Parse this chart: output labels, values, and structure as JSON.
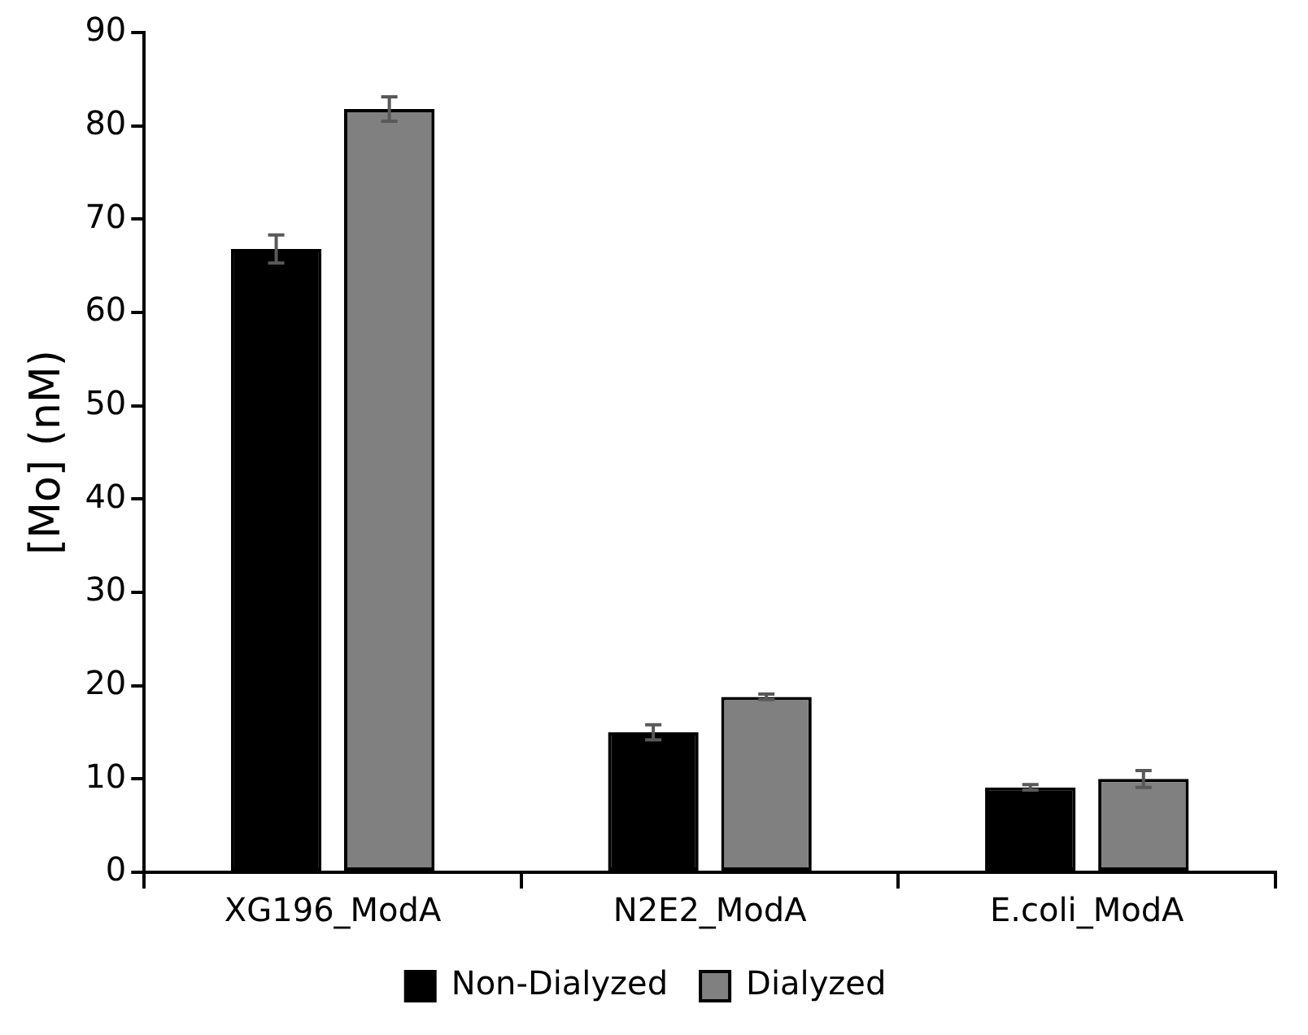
{
  "chart_data": {
    "type": "bar",
    "ylabel": "[Mo] (nM)",
    "categories": [
      "XG196_ModA",
      "N2E2_ModA",
      "E.coli_ModA"
    ],
    "series": [
      {
        "name": "Non-Dialyzed",
        "color": "#000000",
        "values": [
          66.8,
          15.0,
          9.1
        ],
        "errors": [
          1.5,
          0.8,
          0.3
        ]
      },
      {
        "name": "Dialyzed",
        "color": "#808080",
        "values": [
          81.8,
          18.8,
          10.0
        ],
        "errors": [
          1.3,
          0.3,
          0.9
        ]
      }
    ],
    "ylim": [
      0,
      90
    ],
    "yticks": [
      0,
      10,
      20,
      30,
      40,
      50,
      60,
      70,
      80,
      90
    ],
    "grid": false,
    "legend": "bottom"
  }
}
